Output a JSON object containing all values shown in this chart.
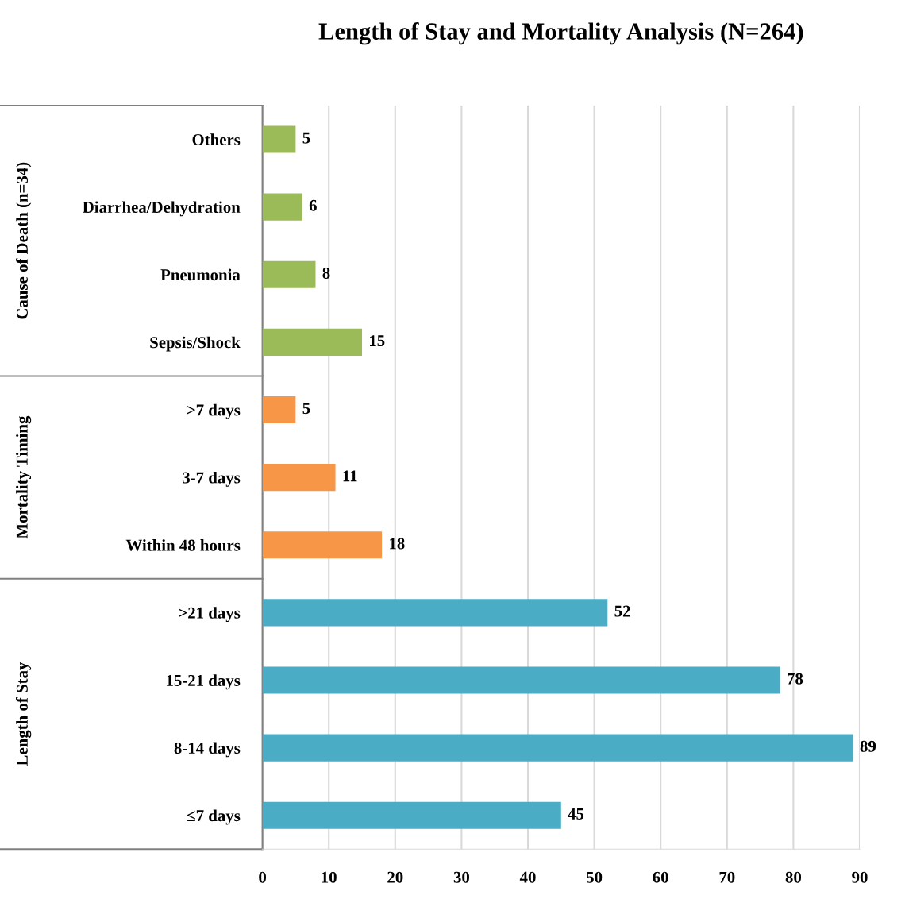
{
  "chart_data": {
    "type": "bar",
    "orientation": "horizontal",
    "title": "Length of Stay and Mortality Analysis (N=264)",
    "categories": [
      "Others",
      "Diarrhea/Dehydration",
      "Pneumonia",
      "Sepsis/Shock",
      ">7 days",
      "3-7 days",
      "Within 48 hours",
      ">21 days",
      "15-21 days",
      "8-14 days",
      "≤7 days"
    ],
    "values": [
      5,
      6,
      8,
      15,
      5,
      11,
      18,
      52,
      78,
      89,
      45
    ],
    "colors": [
      "#9bbb59",
      "#9bbb59",
      "#9bbb59",
      "#9bbb59",
      "#f79646",
      "#f79646",
      "#f79646",
      "#4bacc6",
      "#4bacc6",
      "#4bacc6",
      "#4bacc6"
    ],
    "annotations": [
      "Cause of Death (n=34)",
      "Mortality Timing",
      "Length of Stay"
    ],
    "xlim": [
      0,
      90
    ],
    "xticks": [
      0,
      10,
      20,
      30,
      40,
      50,
      60,
      70,
      80,
      90
    ],
    "grid": "x",
    "data_labels": true
  }
}
